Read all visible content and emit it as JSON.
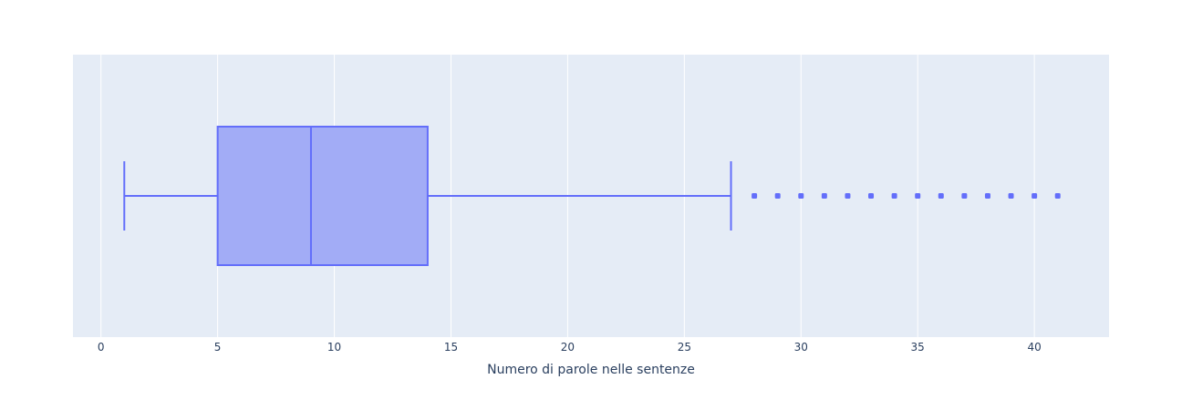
{
  "chart_data": {
    "type": "box",
    "orientation": "horizontal",
    "xlabel": "Numero di parole nelle sentenze",
    "xlim": [
      -1.2,
      43.2
    ],
    "xticks": [
      0,
      5,
      10,
      15,
      20,
      25,
      30,
      35,
      40
    ],
    "grid": true,
    "series": [
      {
        "min": 1,
        "q1": 5,
        "median": 9,
        "q3": 14,
        "max": 27,
        "outliers": [
          28,
          29,
          30,
          31,
          32,
          33,
          34,
          35,
          36,
          37,
          38,
          39,
          40,
          41
        ]
      }
    ]
  },
  "colors": {
    "plot_background": "#e5ecf6",
    "grid": "#ffffff",
    "box_fill": "#a2acf6",
    "box_line": "#636efa",
    "text": "#2a3f5f"
  }
}
